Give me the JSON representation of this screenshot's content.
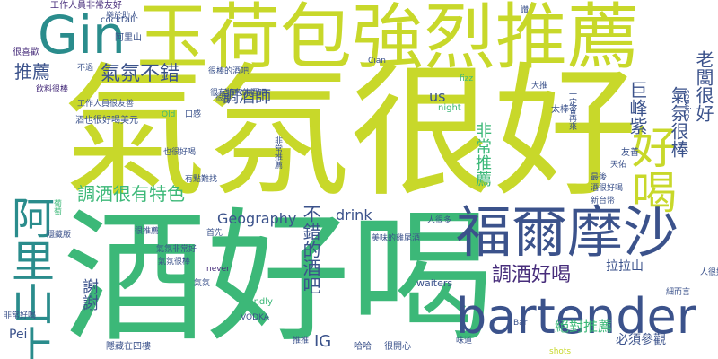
{
  "palette": {
    "yellow_green": "#c8d82a",
    "green": "#3cb878",
    "teal": "#2a8c8c",
    "blue": "#3b528b",
    "navy": "#472d7b",
    "purple": "#440154",
    "lime": "#8fd744"
  },
  "words": [
    "氣氛很好",
    "酒好喝",
    "玉荷包強烈推薦",
    "福爾摩沙",
    "bartender",
    "Gin",
    "阿里山上",
    "好喝",
    "氣氛不錯",
    "調酒很有特色",
    "調酒好喝",
    "不錯的酒吧",
    "推薦",
    "調酒師",
    "巨峰紫",
    "老闆很好",
    "氣氛很棒",
    "Geography",
    "drink",
    "拉拉山",
    "謝謝",
    "絕對推薦",
    "必須參觀",
    "非常推薦",
    "IG",
    "Pei",
    "us",
    "很棒的酒吧",
    "工作人員非常友好",
    "cocktail",
    "阿里山",
    "很喜歡",
    "飲料很棒",
    "大推",
    "太棒了",
    "night",
    "fizz",
    "Cian",
    "Bar",
    "友善",
    "天佑",
    "最後",
    "新台幣",
    "酒很好喝",
    "Old",
    "口感",
    "也很好喝",
    "有點難找",
    "葡萄",
    "首先",
    "人很多",
    "美味的雞尾酒",
    "never",
    "friendly",
    "VODKA",
    "waiters",
    "推推",
    "哈哈",
    "很開心",
    "shots",
    "味道",
    "隱藏在四樓",
    "service",
    "酒也很好喝美元",
    "工作人員很友善",
    "不過",
    "很有特色的酒吧",
    "氣氛非常好",
    "氣氛很棒",
    "非常好喝",
    "樂於助人",
    "一定會再來",
    "細而言",
    "非常推薦",
    "人很好",
    "很棒",
    "讚",
    "氣氛",
    "很推薦",
    "隱藏版"
  ]
}
